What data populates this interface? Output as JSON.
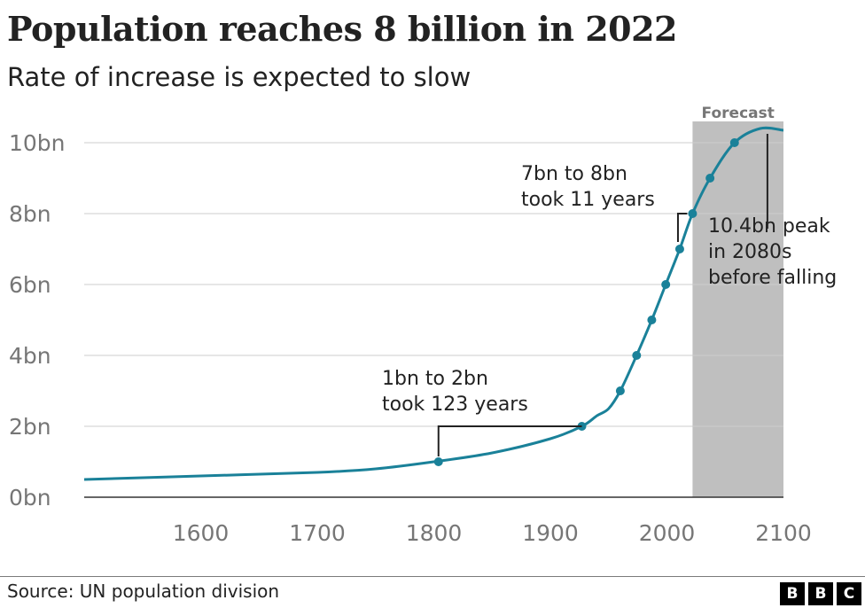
{
  "title": "Population reaches 8 billion in 2022",
  "subtitle": "Rate of increase is expected to slow",
  "source": "Source: UN population division",
  "logo": [
    "B",
    "B",
    "C"
  ],
  "colors": {
    "line": "#1a8199",
    "forecast_band": "#bfbfbf",
    "grid": "#cccccc",
    "text": "#222222",
    "muted": "#767676"
  },
  "chart_data": {
    "type": "line",
    "title": "Population reaches 8 billion in 2022",
    "subtitle": "Rate of increase is expected to slow",
    "xlabel": "",
    "ylabel": "",
    "xlim": [
      1500,
      2100
    ],
    "ylim": [
      0,
      11
    ],
    "x_ticks": [
      1600,
      1700,
      1800,
      1900,
      2000,
      2100
    ],
    "y_ticks": [
      0,
      2,
      4,
      6,
      8,
      10
    ],
    "y_tick_labels": [
      "0bn",
      "2bn",
      "4bn",
      "6bn",
      "8bn",
      "10bn"
    ],
    "grid": "horizontal",
    "forecast": {
      "label": "Forecast",
      "start": 2022,
      "end": 2100
    },
    "series": [
      {
        "values_unit": "bn",
        "x": [
          1500,
          1600,
          1700,
          1750,
          1800,
          1850,
          1900,
          1927,
          1940,
          1950,
          1960,
          1974,
          1987,
          1999,
          2011,
          2022,
          2037,
          2058,
          2080,
          2100
        ],
        "y": [
          0.5,
          0.6,
          0.7,
          0.8,
          1.0,
          1.25,
          1.65,
          2.0,
          2.3,
          2.5,
          3.0,
          4.0,
          5.0,
          6.0,
          7.0,
          8.0,
          9.0,
          10.0,
          10.4,
          10.35
        ]
      }
    ],
    "milestones": [
      {
        "year": 1804,
        "value": 1
      },
      {
        "year": 1927,
        "value": 2
      },
      {
        "year": 1960,
        "value": 3
      },
      {
        "year": 1974,
        "value": 4
      },
      {
        "year": 1987,
        "value": 5
      },
      {
        "year": 1999,
        "value": 6
      },
      {
        "year": 2011,
        "value": 7
      },
      {
        "year": 2022,
        "value": 8
      },
      {
        "year": 2037,
        "value": 9
      },
      {
        "year": 2058,
        "value": 10
      }
    ],
    "annotations": [
      {
        "lines": [
          "1bn to 2bn",
          "took 123 years"
        ],
        "from_year": 1804,
        "to_year": 1927,
        "at_value": 2
      },
      {
        "lines": [
          "7bn to 8bn",
          "took 11 years"
        ],
        "from_year": 2011,
        "to_year": 2022,
        "at_value": 8
      },
      {
        "lines": [
          "10.4bn peak",
          "in 2080s",
          "before falling"
        ],
        "year": 2087,
        "value": 10.4
      }
    ]
  }
}
